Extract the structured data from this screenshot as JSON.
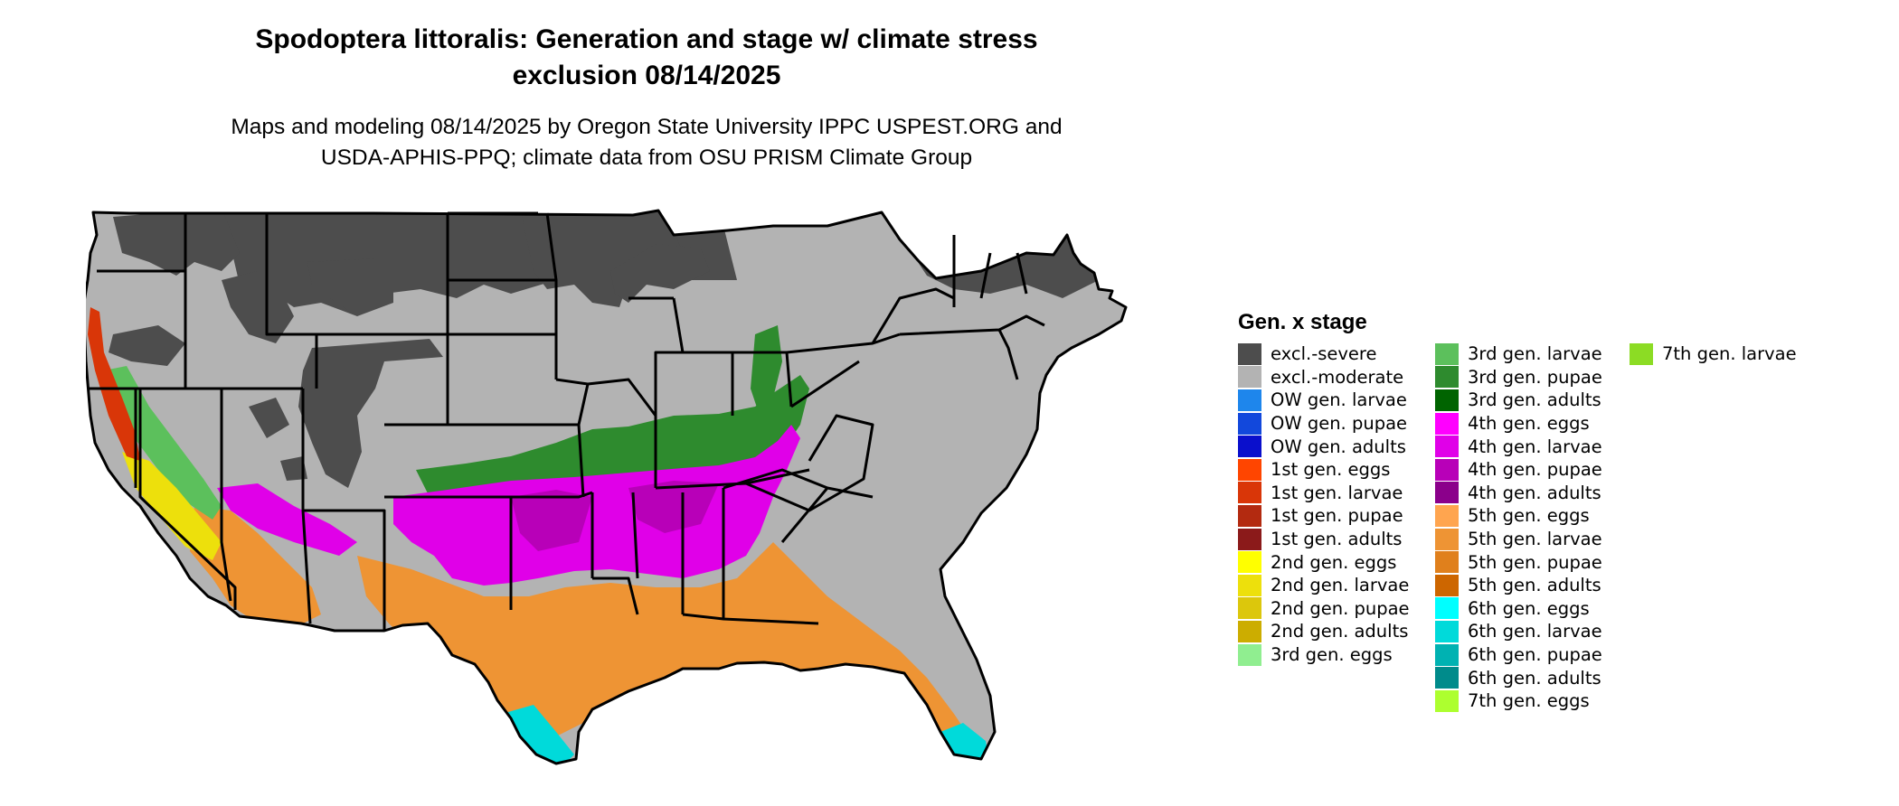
{
  "title_line1": "Spodoptera littoralis: Generation and stage w/ climate stress",
  "title_line2": "exclusion 08/14/2025",
  "subtitle_line1": "Maps and modeling 08/14/2025 by Oregon State University IPPC USPEST.ORG and",
  "subtitle_line2": "USDA-APHIS-PPQ; climate data from OSU PRISM Climate Group",
  "legend": {
    "title": "Gen. x stage",
    "items": [
      {
        "label": "excl.-severe",
        "color": "#4d4d4d"
      },
      {
        "label": "excl.-moderate",
        "color": "#b3b3b3"
      },
      {
        "label": "OW gen. larvae",
        "color": "#1e86ec"
      },
      {
        "label": "OW gen. pupae",
        "color": "#1248dc"
      },
      {
        "label": "OW gen. adults",
        "color": "#0a0fcc"
      },
      {
        "label": "1st gen. eggs",
        "color": "#ff4500"
      },
      {
        "label": "1st gen. larvae",
        "color": "#d93608"
      },
      {
        "label": "1st gen. pupae",
        "color": "#b32a10"
      },
      {
        "label": "1st gen. adults",
        "color": "#8b1a1a"
      },
      {
        "label": "2nd gen. eggs",
        "color": "#ffff00"
      },
      {
        "label": "2nd gen. larvae",
        "color": "#ede00c"
      },
      {
        "label": "2nd gen. pupae",
        "color": "#dcc70c"
      },
      {
        "label": "2nd gen. adults",
        "color": "#ccad00"
      },
      {
        "label": "3rd gen. eggs",
        "color": "#90ee90"
      },
      {
        "label": "3rd gen. larvae",
        "color": "#5cc05c"
      },
      {
        "label": "3rd gen. pupae",
        "color": "#2e8b2e"
      },
      {
        "label": "3rd gen. adults",
        "color": "#006400"
      },
      {
        "label": "4th gen. eggs",
        "color": "#ff00ff"
      },
      {
        "label": "4th gen. larvae",
        "color": "#e000e8"
      },
      {
        "label": "4th gen. pupae",
        "color": "#b800b8"
      },
      {
        "label": "4th gen. adults",
        "color": "#8b008b"
      },
      {
        "label": "5th gen. eggs",
        "color": "#ffa54f"
      },
      {
        "label": "5th gen. larvae",
        "color": "#ee9434"
      },
      {
        "label": "5th gen. pupae",
        "color": "#e0801c"
      },
      {
        "label": "5th gen. adults",
        "color": "#cd6600"
      },
      {
        "label": "6th gen. eggs",
        "color": "#00ffff"
      },
      {
        "label": "6th gen. larvae",
        "color": "#00dada"
      },
      {
        "label": "6th gen. pupae",
        "color": "#00b2b2"
      },
      {
        "label": "6th gen. adults",
        "color": "#008b8b"
      },
      {
        "label": "7th gen. eggs",
        "color": "#adff2f"
      },
      {
        "label": "7th gen. larvae",
        "color": "#8cdc24"
      }
    ]
  },
  "map_colors": {
    "border": "#000000",
    "severe": "#4d4d4d",
    "moderate": "#b3b3b3",
    "gen3_band": "#2e8b2e",
    "gen4": "#e000e8",
    "gen4_dark": "#b800b8",
    "gen5": "#ee9434",
    "gen6": "#00dada",
    "west_green": "#5cc05c",
    "west_yellow": "#ede00c",
    "west_red": "#d93608"
  }
}
